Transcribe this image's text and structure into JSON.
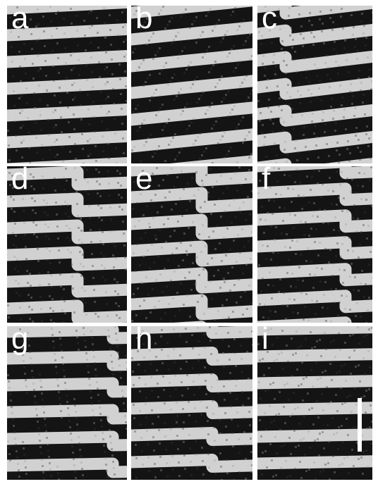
{
  "figure": {
    "panels": [
      {
        "label": "a",
        "defect": "none"
      },
      {
        "label": "b",
        "defect": "none"
      },
      {
        "label": "c",
        "defect": "dislocation"
      },
      {
        "label": "d",
        "defect": "dislocation"
      },
      {
        "label": "e",
        "defect": "dislocation"
      },
      {
        "label": "f",
        "defect": "dislocation"
      },
      {
        "label": "g",
        "defect": "dislocation"
      },
      {
        "label": "h",
        "defect": "dislocation"
      },
      {
        "label": "i",
        "defect": "none"
      }
    ],
    "scale_bar": {
      "present": true,
      "label": ""
    },
    "colors": {
      "background": "#ffffff",
      "light_stripe": "#e6e6e6",
      "dark_stripe": "#141414",
      "label": "#ffffff"
    }
  }
}
